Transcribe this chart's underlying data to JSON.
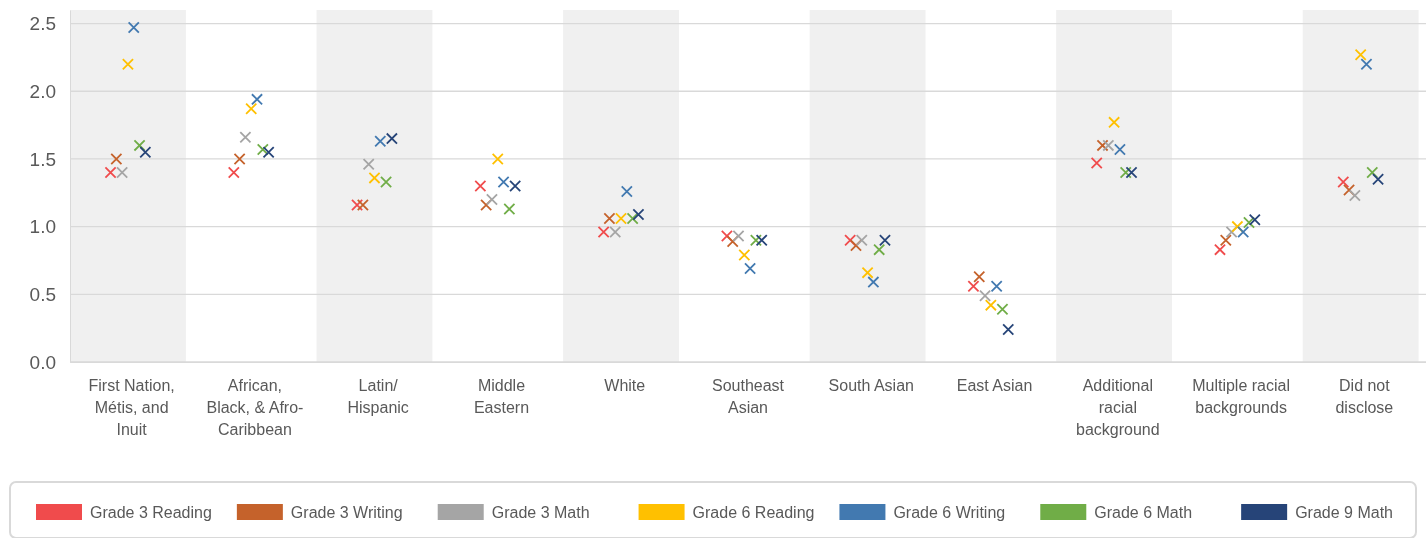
{
  "chart_data": {
    "type": "scatter",
    "categories": [
      "First Nation, Métis, and Inuit",
      "African, Black, & Afro-Caribbean",
      "Latin/ Hispanic",
      "Middle Eastern",
      "White",
      "Southeast Asian",
      "South Asian",
      "East Asian",
      "Additional racial background",
      "Multiple racial backgrounds",
      "Did not disclose"
    ],
    "series": [
      {
        "name": "Grade 3 Reading",
        "color": "#f04b4c",
        "values": [
          1.4,
          1.4,
          1.16,
          1.3,
          0.96,
          0.93,
          0.9,
          0.56,
          1.47,
          0.83,
          1.33
        ]
      },
      {
        "name": "Grade 3 Writing",
        "color": "#c5622b",
        "values": [
          1.5,
          1.5,
          1.16,
          1.16,
          1.06,
          0.89,
          0.86,
          0.63,
          1.6,
          0.9,
          1.27
        ]
      },
      {
        "name": "Grade 3 Math",
        "color": "#a5a5a5",
        "values": [
          1.4,
          1.66,
          1.46,
          1.2,
          0.96,
          0.93,
          0.9,
          0.49,
          1.6,
          0.96,
          1.23
        ]
      },
      {
        "name": "Grade 6 Reading",
        "color": "#ffc000",
        "values": [
          2.2,
          1.87,
          1.36,
          1.5,
          1.06,
          0.79,
          0.66,
          0.42,
          1.77,
          1.0,
          2.27
        ]
      },
      {
        "name": "Grade 6 Writing",
        "color": "#4279b0",
        "values": [
          2.47,
          1.94,
          1.63,
          1.33,
          1.26,
          0.69,
          0.59,
          0.56,
          1.57,
          0.96,
          2.2
        ]
      },
      {
        "name": "Grade 6 Math",
        "color": "#70ad47",
        "values": [
          1.6,
          1.57,
          1.33,
          1.13,
          1.06,
          0.9,
          0.83,
          0.39,
          1.4,
          1.03,
          1.4
        ]
      },
      {
        "name": "Grade 9 Math",
        "color": "#264478",
        "values": [
          1.55,
          1.55,
          1.65,
          1.3,
          1.09,
          0.9,
          0.9,
          0.24,
          1.4,
          1.05,
          1.35
        ]
      }
    ],
    "ylim": [
      0,
      2.6
    ],
    "yticks": [
      {
        "value": 0,
        "label": "0.0"
      },
      {
        "value": 0.5,
        "label": "0.5"
      },
      {
        "value": 1,
        "label": "1.0"
      },
      {
        "value": 1.5,
        "label": "1.5"
      },
      {
        "value": 2,
        "label": "2.0"
      },
      {
        "value": 2.5,
        "label": "2.5"
      }
    ],
    "bands": [
      {
        "axis": "x",
        "from": "First Nation, Métis, and Inuit",
        "to": "First Nation, Métis, and Inuit",
        "color": "#f0f0f0"
      },
      {
        "axis": "x",
        "from": "Latin/ Hispanic",
        "to": "Latin/ Hispanic",
        "color": "#f0f0f0"
      },
      {
        "axis": "x",
        "from": "White",
        "to": "White",
        "color": "#f0f0f0"
      },
      {
        "axis": "x",
        "from": "South Asian",
        "to": "South Asian",
        "color": "#f0f0f0"
      },
      {
        "axis": "x",
        "from": "Additional racial background",
        "to": "Additional racial background",
        "color": "#f0f0f0"
      },
      {
        "axis": "x",
        "from": "Did not disclose",
        "to": "Did not disclose",
        "color": "#f0f0f0"
      }
    ],
    "grid": "y",
    "legend": "bottom",
    "marker": "cross"
  }
}
